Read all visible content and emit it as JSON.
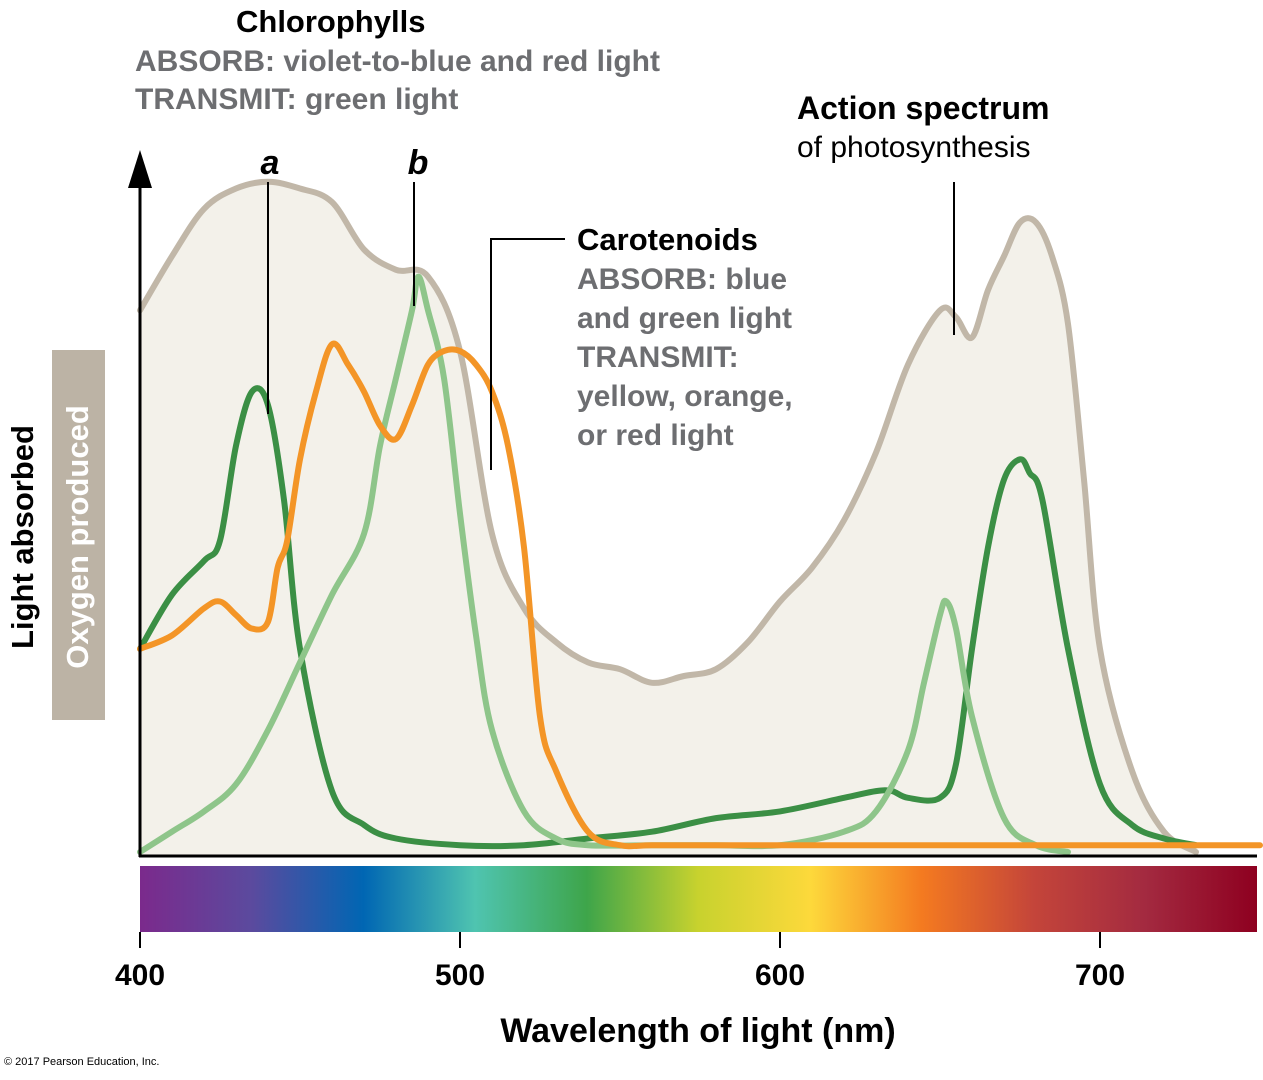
{
  "chart_data": {
    "type": "line",
    "xlabel": "Wavelength of light (nm)",
    "ylabel": "Light absorbed",
    "ylabel2": "Oxygen produced",
    "xlim": [
      400,
      750
    ],
    "ylim": [
      0,
      1
    ],
    "xticks": [
      "400",
      "500",
      "600",
      "700"
    ],
    "xtick_values": [
      400,
      500,
      600,
      700
    ],
    "annotations": {
      "chlorophylls": {
        "title": "Chlorophylls",
        "line1": "ABSORB: violet-to-blue and red light",
        "line2": "TRANSMIT: green light"
      },
      "action": {
        "line1": "Action spectrum",
        "line2": "of photosynthesis"
      },
      "carotenoids": {
        "title": "Carotenoids",
        "lines": [
          "ABSORB: blue",
          "and green light",
          "TRANSMIT:",
          "yellow, orange,",
          "or red light"
        ]
      },
      "label_a": "a",
      "label_b": "b"
    },
    "spectrum_colors": [
      "#7b2a8c",
      "#5b4a9e",
      "#0066b3",
      "#4fc4b0",
      "#3ea54a",
      "#c8d22e",
      "#fdd93b",
      "#f47a20",
      "#c4453a",
      "#a32a40",
      "#8e0020"
    ],
    "series": [
      {
        "name": "Action spectrum",
        "color": "#c1b7a8",
        "fill": "#f3f1ea",
        "x": [
          400,
          410,
          420,
          430,
          440,
          450,
          460,
          470,
          480,
          490,
          500,
          510,
          520,
          530,
          540,
          550,
          560,
          570,
          580,
          590,
          600,
          610,
          620,
          630,
          640,
          650,
          655,
          660,
          665,
          670,
          675,
          680,
          685,
          690,
          695,
          700,
          710,
          720,
          730
        ],
        "values": [
          0.8,
          0.88,
          0.95,
          0.98,
          0.99,
          0.98,
          0.96,
          0.89,
          0.86,
          0.85,
          0.74,
          0.47,
          0.36,
          0.31,
          0.28,
          0.27,
          0.25,
          0.26,
          0.27,
          0.31,
          0.37,
          0.42,
          0.49,
          0.59,
          0.72,
          0.8,
          0.79,
          0.76,
          0.83,
          0.88,
          0.93,
          0.93,
          0.88,
          0.78,
          0.55,
          0.3,
          0.12,
          0.03,
          0.0
        ]
      },
      {
        "name": "a",
        "color": "#3b8f45",
        "x": [
          400,
          410,
          420,
          425,
          430,
          435,
          440,
          445,
          450,
          460,
          470,
          480,
          500,
          520,
          540,
          560,
          580,
          600,
          620,
          630,
          635,
          640,
          650,
          655,
          660,
          665,
          670,
          675,
          678,
          682,
          690,
          700,
          710,
          720,
          730
        ],
        "values": [
          0.3,
          0.38,
          0.43,
          0.46,
          0.6,
          0.68,
          0.66,
          0.52,
          0.3,
          0.09,
          0.04,
          0.02,
          0.01,
          0.01,
          0.02,
          0.03,
          0.05,
          0.06,
          0.08,
          0.09,
          0.09,
          0.08,
          0.08,
          0.13,
          0.3,
          0.45,
          0.55,
          0.58,
          0.56,
          0.52,
          0.3,
          0.1,
          0.04,
          0.02,
          0.01
        ]
      },
      {
        "name": "b",
        "color": "#8ec58a",
        "x": [
          400,
          410,
          420,
          430,
          440,
          450,
          460,
          470,
          475,
          480,
          485,
          487,
          490,
          495,
          500,
          505,
          510,
          520,
          530,
          540,
          560,
          580,
          600,
          620,
          630,
          640,
          645,
          650,
          652,
          655,
          660,
          670,
          680,
          690
        ],
        "values": [
          0.0,
          0.03,
          0.06,
          0.1,
          0.18,
          0.28,
          0.38,
          0.47,
          0.6,
          0.7,
          0.8,
          0.85,
          0.8,
          0.7,
          0.5,
          0.32,
          0.18,
          0.06,
          0.02,
          0.01,
          0.01,
          0.01,
          0.01,
          0.03,
          0.06,
          0.15,
          0.25,
          0.35,
          0.37,
          0.33,
          0.2,
          0.05,
          0.01,
          0.0
        ]
      },
      {
        "name": "Carotenoids",
        "color": "#f39527",
        "x": [
          400,
          410,
          420,
          425,
          430,
          435,
          440,
          443,
          446,
          450,
          455,
          460,
          465,
          470,
          475,
          480,
          485,
          490,
          495,
          500,
          505,
          510,
          515,
          520,
          525,
          530,
          540,
          550,
          560,
          580,
          600,
          620,
          650,
          750
        ],
        "values": [
          0.3,
          0.32,
          0.36,
          0.37,
          0.35,
          0.33,
          0.34,
          0.42,
          0.46,
          0.58,
          0.68,
          0.75,
          0.72,
          0.68,
          0.63,
          0.61,
          0.66,
          0.72,
          0.74,
          0.74,
          0.72,
          0.68,
          0.6,
          0.45,
          0.2,
          0.12,
          0.03,
          0.01,
          0.01,
          0.01,
          0.01,
          0.01,
          0.01,
          0.01
        ]
      }
    ]
  },
  "footer": {
    "copyright": "© 2017 Pearson Education, Inc."
  }
}
